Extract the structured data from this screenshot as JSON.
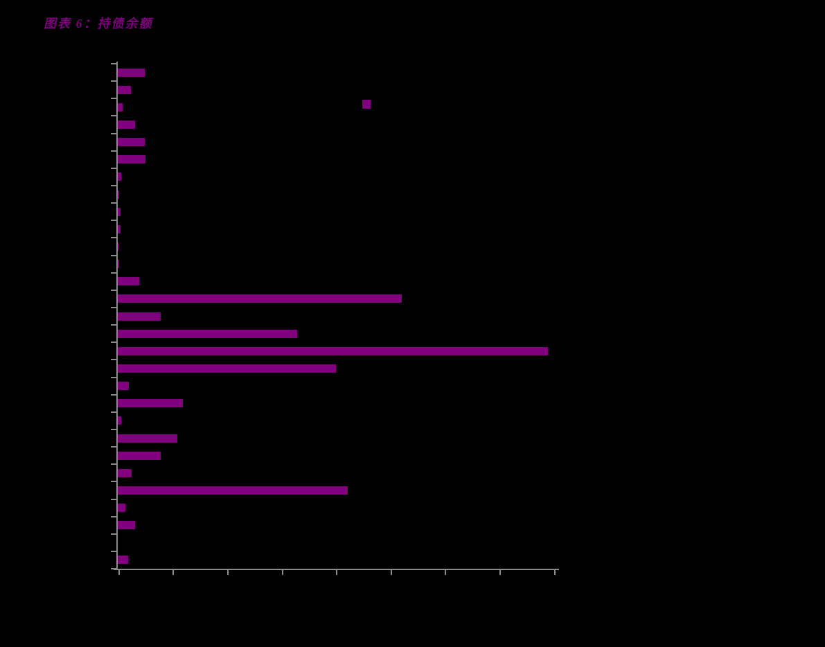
{
  "page": {
    "background_color": "#000000"
  },
  "header": {
    "title": "图表 6：持债余额",
    "title_color": "#7D007D"
  },
  "chart_data": {
    "type": "bar",
    "orientation": "horizontal",
    "title": "图表 6：持债余额",
    "xlabel": "",
    "ylabel": "",
    "bar_color": "#800080",
    "axis_color": "#8C8C8C",
    "background_color": "#000000",
    "grid": false,
    "axis_tick_labels_visible": false,
    "category_labels_visible": false,
    "x_axis": {
      "xlim": [
        0,
        8000
      ],
      "tick_interval": 1000,
      "tick_count": 9
    },
    "y_axis": {
      "category_count": 29,
      "boundary_tick_count": 30
    },
    "values": [
      500,
      240,
      90,
      320,
      500,
      510,
      60,
      25,
      50,
      50,
      15,
      25,
      395,
      5210,
      790,
      3295,
      7900,
      4010,
      205,
      1200,
      60,
      1100,
      790,
      255,
      4225,
      140,
      320,
      0,
      190
    ],
    "legend": {
      "marker_color": "#800080",
      "label": "",
      "position": "upper-center"
    }
  }
}
